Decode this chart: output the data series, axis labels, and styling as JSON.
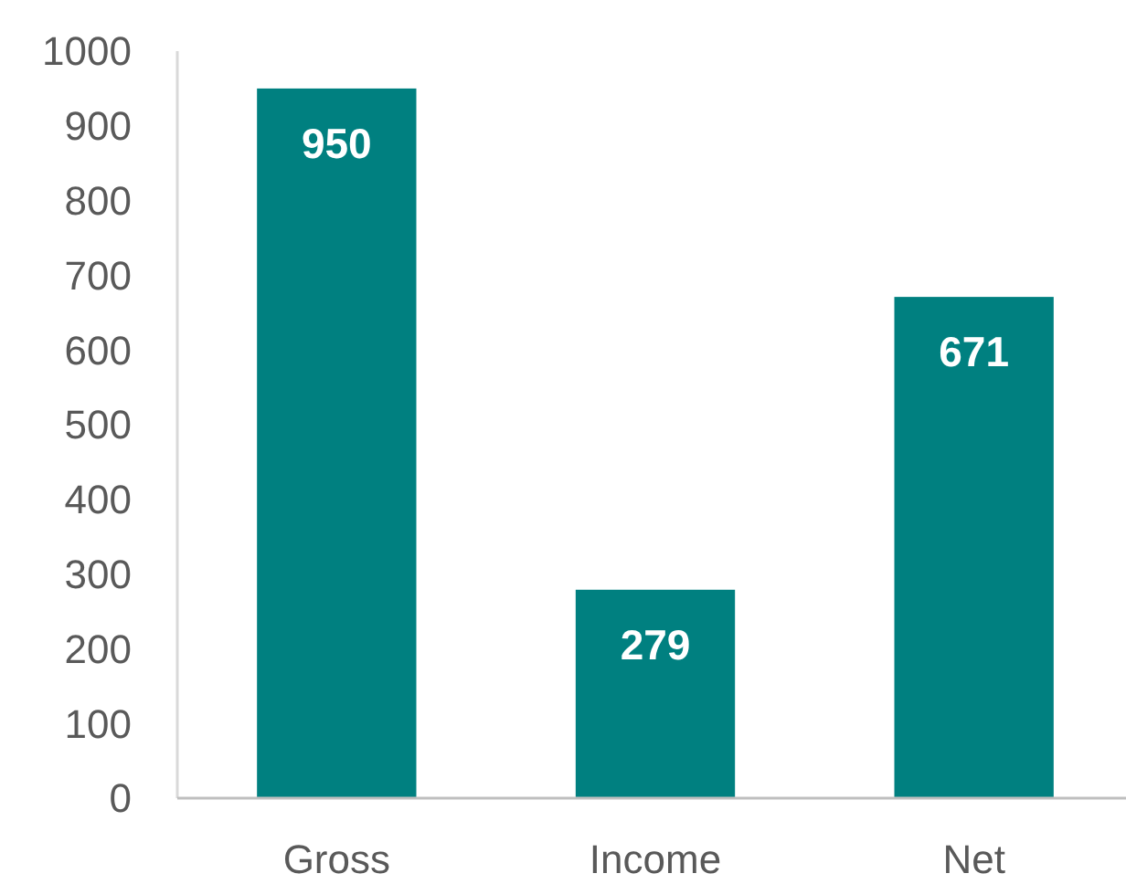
{
  "chart_data": {
    "type": "bar",
    "categories": [
      "Gross",
      "Income",
      "Net"
    ],
    "values": [
      950,
      279,
      671
    ],
    "color": "#008080",
    "ylim": [
      0,
      1000
    ],
    "yticks": [
      0,
      100,
      200,
      300,
      400,
      500,
      600,
      700,
      800,
      900,
      1000
    ],
    "data_labels": true
  }
}
